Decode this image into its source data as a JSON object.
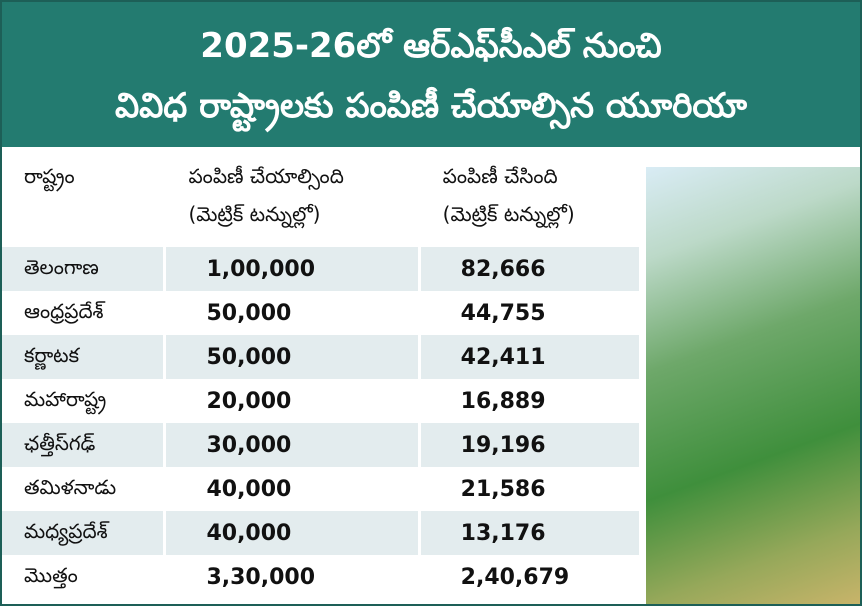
{
  "header": {
    "title": [
      "2025-26లో ఆర్‌ఎఫ్‌సీఎల్ నుంచి",
      "వివిధ రాష్ట్రాలకు పంపిణీ చేయాల్సిన యూరియా"
    ]
  },
  "table": {
    "columns": [
      [
        "రాష్ట్రం"
      ],
      [
        "పంపిణీ చేయాల్సింది",
        "(మెట్రిక్ టన్నుల్లో)"
      ],
      [
        "పంపిణీ చేసింది",
        "(మెట్రిక్ టన్నుల్లో)"
      ]
    ],
    "rows": [
      [
        "తెలంగాణ",
        "1,00,000",
        "82,666"
      ],
      [
        "ఆంధ్రప్రదేశ్",
        "50,000",
        "44,755"
      ],
      [
        "కర్ణాటక",
        "50,000",
        "42,411"
      ],
      [
        "మహారాష్ట్ర",
        "20,000",
        "16,889"
      ],
      [
        "ఛత్తీస్‌గఢ్",
        "30,000",
        "19,196"
      ],
      [
        "తమిళనాడు",
        "40,000",
        "21,586"
      ],
      [
        "మధ్యప్రదేశ్",
        "40,000",
        "13,176"
      ],
      [
        "మొత్తం",
        "3,30,000",
        "2,40,679"
      ]
    ]
  }
}
